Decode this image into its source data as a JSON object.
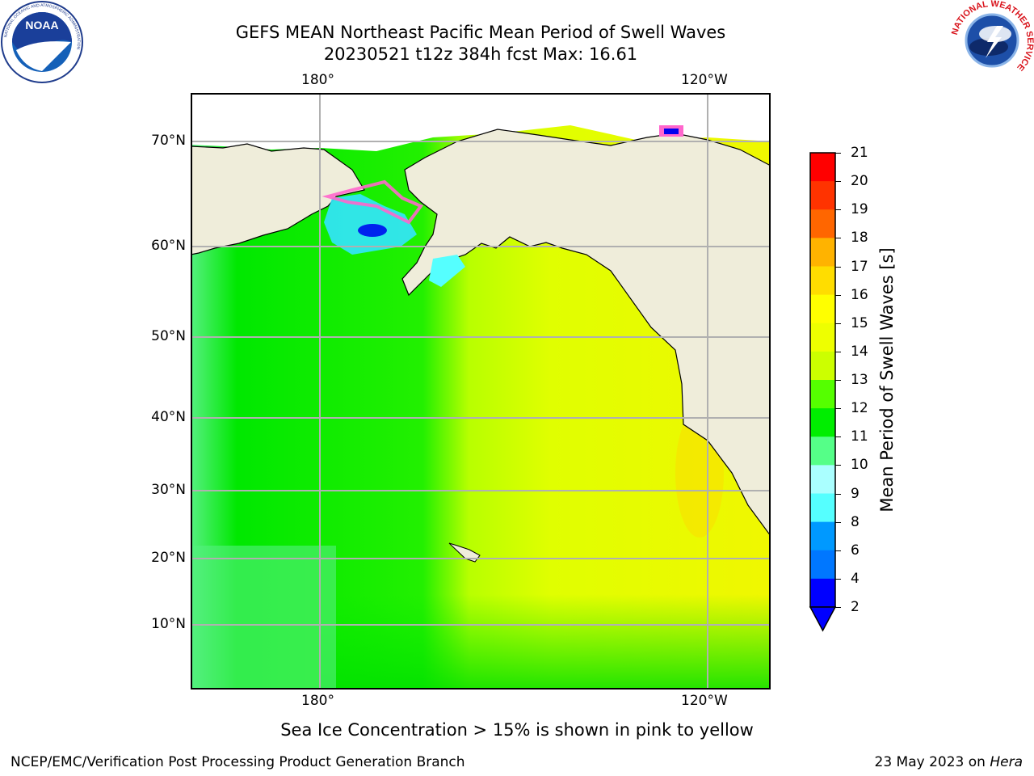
{
  "title_line1": "GEFS MEAN Northeast Pacific Mean Period of Swell Waves",
  "title_line2": "20230521 t12z 384h fcst   Max: 16.61",
  "logos": {
    "left": {
      "name": "NOAA",
      "ring_text": "NATIONAL OCEANIC AND ATMOSPHERIC ADMINISTRATION",
      "bottom_text": "U.S. DEPARTMENT OF COMMERCE"
    },
    "right": {
      "name": "NATIONAL WEATHER SERVICE"
    }
  },
  "map": {
    "lon_labels_top": [
      "180°",
      "120°W"
    ],
    "lon_labels_bottom": [
      "180°",
      "120°W"
    ],
    "lat_labels": [
      "70°N",
      "60°N",
      "50°N",
      "40°N",
      "30°N",
      "20°N",
      "10°N"
    ],
    "colors": {
      "land": "#efedda",
      "ocean_west": "#00ee00",
      "ocean_east": "#e6ff00"
    }
  },
  "colorbar": {
    "title": "Mean Period of Swell Waves [s]",
    "ticks": [
      "21",
      "20",
      "19",
      "18",
      "17",
      "16",
      "15",
      "14",
      "13",
      "12",
      "11",
      "10",
      "9",
      "8",
      "6",
      "4",
      "2"
    ],
    "colors": [
      "#ff0000",
      "#ff3300",
      "#ff6600",
      "#ff8c00",
      "#ffb300",
      "#ffdd00",
      "#ffff00",
      "#eeff00",
      "#ccff00",
      "#99ff00",
      "#55ff00",
      "#00ee00",
      "#55ff88",
      "#aaffff",
      "#55ffff",
      "#00ffff",
      "#0099ff",
      "#0077ff",
      "#0000ff"
    ]
  },
  "note": "Sea Ice Concentration > 15% is shown in pink to yellow",
  "footer": {
    "left": "NCEP/EMC/Verification Post Processing Product Generation Branch",
    "right_prefix": "23 May 2023 on ",
    "right_host": "Hera"
  }
}
